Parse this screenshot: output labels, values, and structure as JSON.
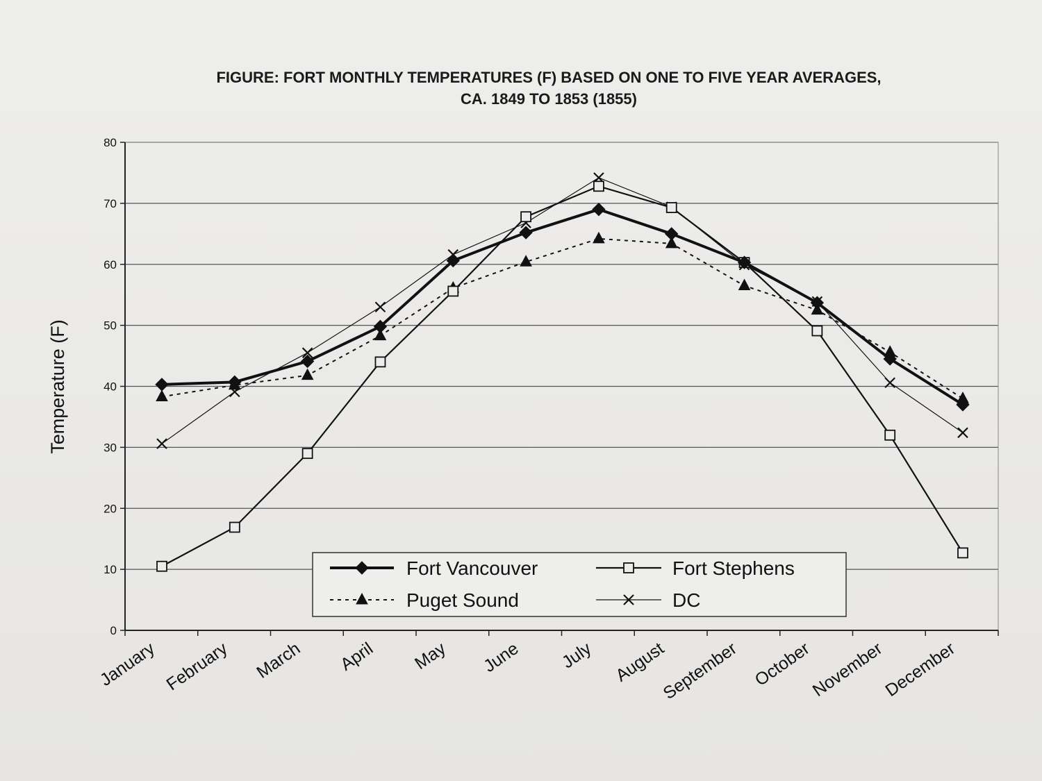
{
  "chart_data": {
    "type": "line",
    "title": "FIGURE: FORT MONTHLY TEMPERATURES (F) BASED ON ONE TO FIVE YEAR AVERAGES,",
    "subtitle": "CA. 1849 TO 1853 (1855)",
    "ylabel": "Temperature (F)",
    "xlabel": "",
    "ylim": [
      0,
      80
    ],
    "yticks": [
      0,
      10,
      20,
      30,
      40,
      50,
      60,
      70,
      80
    ],
    "grid": true,
    "legend_placement": "bottom-center",
    "categories": [
      "January",
      "February",
      "March",
      "April",
      "May",
      "June",
      "July",
      "August",
      "September",
      "October",
      "November",
      "December"
    ],
    "series": [
      {
        "name": "Fort Vancouver",
        "marker": "diamond",
        "line": "solid-thick",
        "color": "#111111",
        "values": [
          40.3,
          40.7,
          44.1,
          49.8,
          60.6,
          65.2,
          69.0,
          65.0,
          60.3,
          53.7,
          44.5,
          37.0
        ]
      },
      {
        "name": "Fort Stephens",
        "marker": "open-square",
        "line": "solid",
        "color": "#111111",
        "values": [
          10.5,
          16.9,
          29.0,
          44.0,
          55.6,
          67.8,
          72.8,
          69.3,
          60.3,
          49.1,
          32.0,
          12.7
        ]
      },
      {
        "name": "Puget Sound",
        "marker": "triangle",
        "line": "dotted",
        "color": "#111111",
        "values": [
          38.3,
          40.2,
          41.8,
          48.3,
          56.1,
          60.4,
          64.2,
          63.4,
          56.5,
          52.5,
          45.6,
          38.0
        ]
      },
      {
        "name": "DC",
        "marker": "x",
        "line": "solid-thin",
        "color": "#111111",
        "values": [
          30.6,
          39.1,
          45.5,
          53.0,
          61.6,
          66.8,
          74.2,
          69.4,
          59.9,
          53.9,
          40.6,
          32.4
        ]
      }
    ]
  }
}
